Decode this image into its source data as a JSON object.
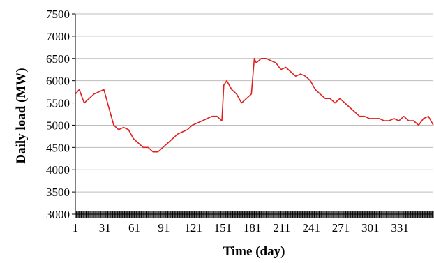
{
  "chart_data": {
    "type": "line",
    "title": "",
    "xlabel": "Time (day)",
    "ylabel": "Daily load (MW)",
    "xlim": [
      1,
      365
    ],
    "ylim": [
      3000,
      7500
    ],
    "x_ticks": [
      1,
      31,
      61,
      91,
      121,
      151,
      181,
      211,
      241,
      271,
      301,
      331
    ],
    "y_ticks": [
      3000,
      3500,
      4000,
      4500,
      5000,
      5500,
      6000,
      6500,
      7000,
      7500
    ],
    "grid": "horizontal",
    "legend": "none",
    "series": [
      {
        "color": "#e02020",
        "x": [
          1,
          5,
          10,
          15,
          20,
          25,
          30,
          35,
          40,
          45,
          50,
          55,
          60,
          65,
          70,
          75,
          80,
          85,
          90,
          95,
          100,
          105,
          110,
          115,
          120,
          125,
          130,
          135,
          140,
          145,
          150,
          152,
          155,
          160,
          165,
          170,
          175,
          180,
          183,
          185,
          190,
          195,
          200,
          205,
          210,
          215,
          220,
          225,
          230,
          235,
          240,
          245,
          250,
          255,
          260,
          265,
          270,
          275,
          280,
          285,
          290,
          295,
          300,
          305,
          310,
          315,
          320,
          325,
          330,
          335,
          340,
          345,
          350,
          355,
          360,
          365
        ],
        "y": [
          5700,
          5800,
          5500,
          5600,
          5700,
          5750,
          5800,
          5400,
          5000,
          4900,
          4950,
          4900,
          4700,
          4600,
          4500,
          4500,
          4400,
          4400,
          4500,
          4600,
          4700,
          4800,
          4850,
          4900,
          5000,
          5050,
          5100,
          5150,
          5200,
          5200,
          5100,
          5900,
          6000,
          5800,
          5700,
          5500,
          5600,
          5700,
          6500,
          6400,
          6500,
          6500,
          6450,
          6400,
          6250,
          6300,
          6200,
          6100,
          6150,
          6100,
          6000,
          5800,
          5700,
          5600,
          5600,
          5500,
          5600,
          5500,
          5400,
          5300,
          5200,
          5200,
          5150,
          5150,
          5150,
          5100,
          5100,
          5150,
          5100,
          5200,
          5100,
          5100,
          5000,
          5150,
          5200,
          5000
        ]
      }
    ]
  }
}
